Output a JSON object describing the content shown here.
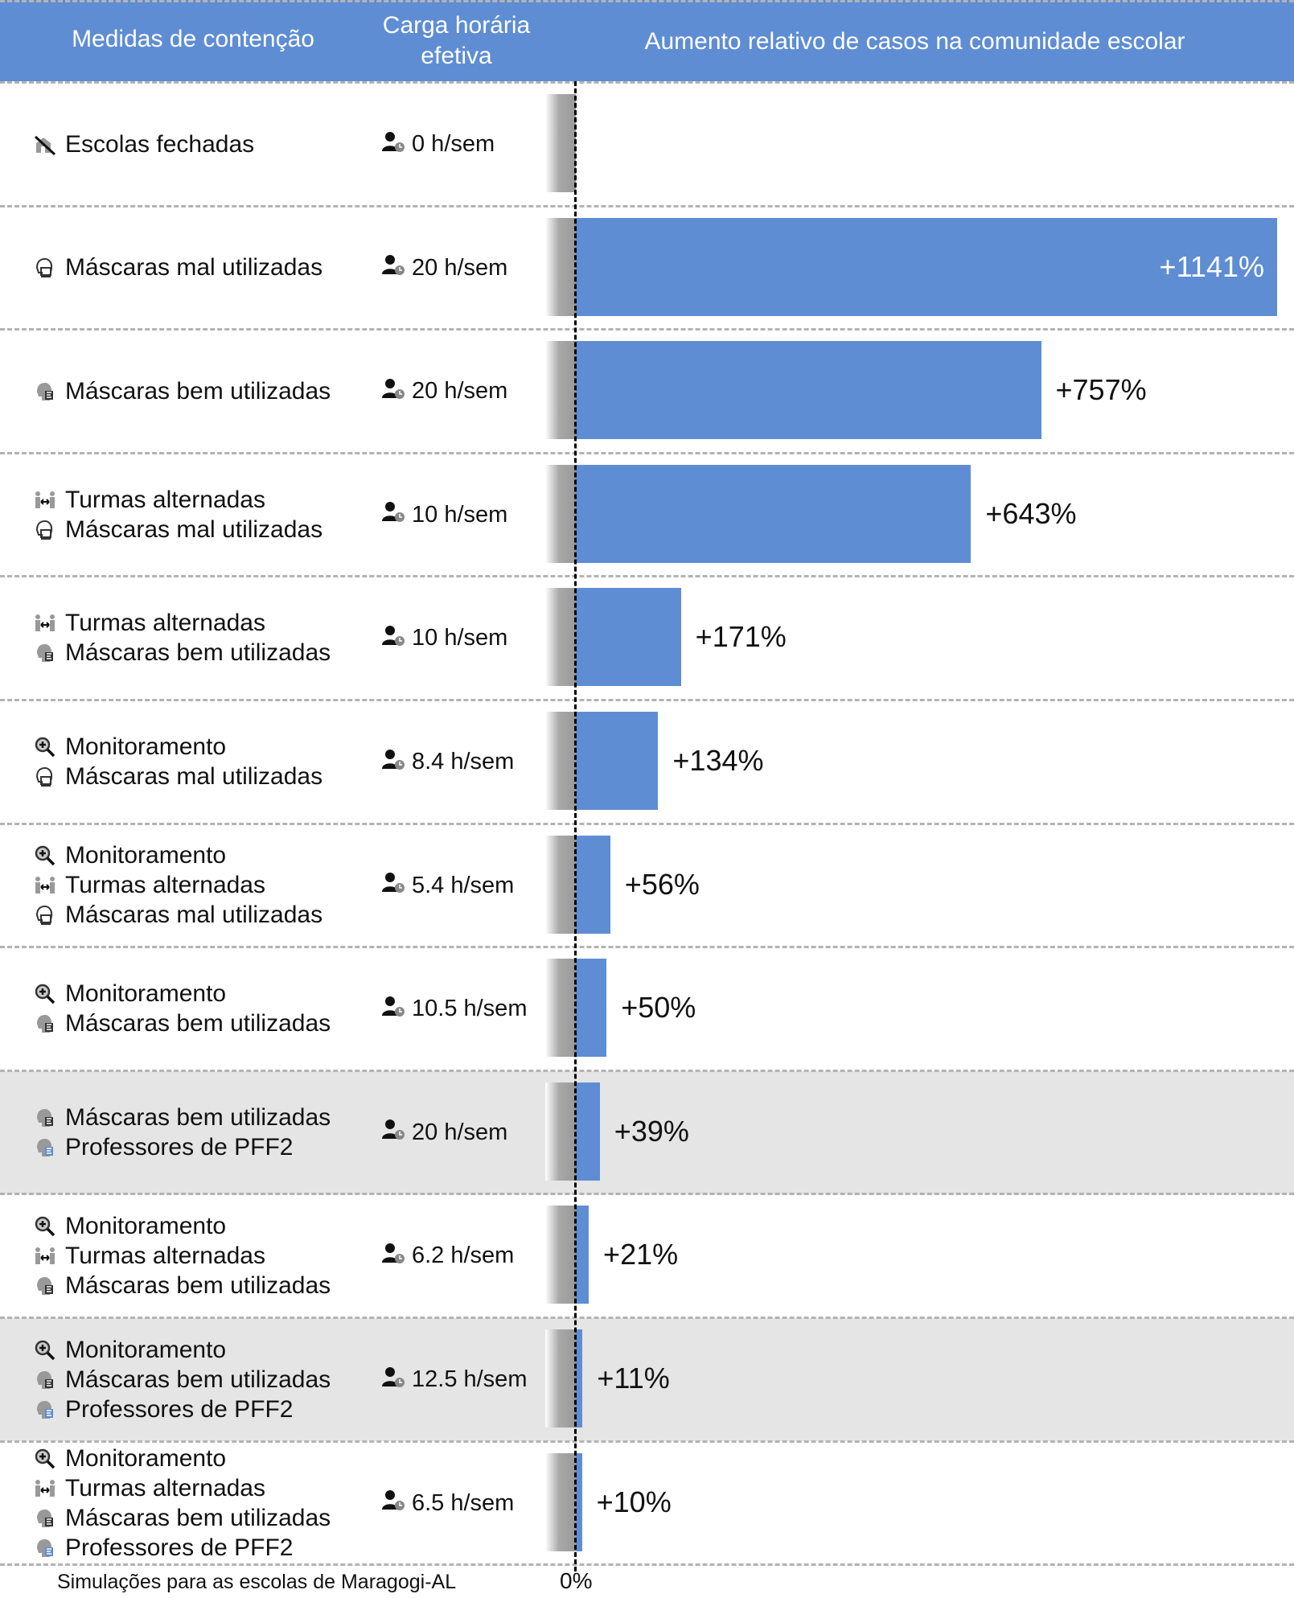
{
  "header": {
    "col1": "Medidas de contenção",
    "col2_line1": "Carga horária",
    "col2_line2": "efetiva",
    "col3": "Aumento relativo de casos na comunidade escolar"
  },
  "footer": {
    "note": "Simulações para as escolas de Maragogi-AL",
    "zero_label": "0%"
  },
  "colors": {
    "bar": "#5e8dd3",
    "highlight": "#e5e5e5",
    "separator": "#b3b3b3"
  },
  "chart_data": {
    "type": "bar",
    "orientation": "horizontal",
    "title": "Aumento relativo de casos na comunidade escolar",
    "xlim": [
      0,
      1141
    ],
    "categories": [
      {
        "measures": [
          {
            "icon": "school-closed-icon",
            "label": "Escolas fechadas"
          }
        ],
        "load": "0 h/sem",
        "value": 0,
        "label": "",
        "highlight": false
      },
      {
        "measures": [
          {
            "icon": "mask-bad-icon",
            "label": "Máscaras mal utilizadas"
          }
        ],
        "load": "20 h/sem",
        "value": 1141,
        "label": "+1141%",
        "highlight": false
      },
      {
        "measures": [
          {
            "icon": "mask-good-icon",
            "label": "Máscaras bem utilizadas"
          }
        ],
        "load": "20 h/sem",
        "value": 757,
        "label": "+757%",
        "highlight": false
      },
      {
        "measures": [
          {
            "icon": "alternating-classes-icon",
            "label": "Turmas alternadas"
          },
          {
            "icon": "mask-bad-icon",
            "label": "Máscaras mal utilizadas"
          }
        ],
        "load": "10 h/sem",
        "value": 643,
        "label": "+643%",
        "highlight": false
      },
      {
        "measures": [
          {
            "icon": "alternating-classes-icon",
            "label": "Turmas alternadas"
          },
          {
            "icon": "mask-good-icon",
            "label": "Máscaras bem utilizadas"
          }
        ],
        "load": "10 h/sem",
        "value": 171,
        "label": "+171%",
        "highlight": false
      },
      {
        "measures": [
          {
            "icon": "monitoring-icon",
            "label": "Monitoramento"
          },
          {
            "icon": "mask-bad-icon",
            "label": "Máscaras mal utilizadas"
          }
        ],
        "load": "8.4 h/sem",
        "value": 134,
        "label": "+134%",
        "highlight": false
      },
      {
        "measures": [
          {
            "icon": "monitoring-icon",
            "label": "Monitoramento"
          },
          {
            "icon": "alternating-classes-icon",
            "label": "Turmas alternadas"
          },
          {
            "icon": "mask-bad-icon",
            "label": "Máscaras mal utilizadas"
          }
        ],
        "load": "5.4 h/sem",
        "value": 56,
        "label": "+56%",
        "highlight": false
      },
      {
        "measures": [
          {
            "icon": "monitoring-icon",
            "label": "Monitoramento"
          },
          {
            "icon": "mask-good-icon",
            "label": "Máscaras bem utilizadas"
          }
        ],
        "load": "10.5 h/sem",
        "value": 50,
        "label": "+50%",
        "highlight": false
      },
      {
        "measures": [
          {
            "icon": "mask-good-icon",
            "label": "Máscaras bem utilizadas"
          },
          {
            "icon": "pff2-teacher-icon",
            "label": "Professores de PFF2"
          }
        ],
        "load": "20 h/sem",
        "value": 39,
        "label": "+39%",
        "highlight": true
      },
      {
        "measures": [
          {
            "icon": "monitoring-icon",
            "label": "Monitoramento"
          },
          {
            "icon": "alternating-classes-icon",
            "label": "Turmas alternadas"
          },
          {
            "icon": "mask-good-icon",
            "label": "Máscaras bem utilizadas"
          }
        ],
        "load": "6.2 h/sem",
        "value": 21,
        "label": "+21%",
        "highlight": false
      },
      {
        "measures": [
          {
            "icon": "monitoring-icon",
            "label": "Monitoramento"
          },
          {
            "icon": "mask-good-icon",
            "label": "Máscaras bem utilizadas"
          },
          {
            "icon": "pff2-teacher-icon",
            "label": "Professores de PFF2"
          }
        ],
        "load": "12.5 h/sem",
        "value": 11,
        "label": "+11%",
        "highlight": true
      },
      {
        "measures": [
          {
            "icon": "monitoring-icon",
            "label": "Monitoramento"
          },
          {
            "icon": "alternating-classes-icon",
            "label": "Turmas alternadas"
          },
          {
            "icon": "mask-good-icon",
            "label": "Máscaras bem utilizadas"
          },
          {
            "icon": "pff2-teacher-icon",
            "label": "Professores de PFF2"
          }
        ],
        "load": "6.5 h/sem",
        "value": 10,
        "label": "+10%",
        "highlight": false
      }
    ]
  }
}
